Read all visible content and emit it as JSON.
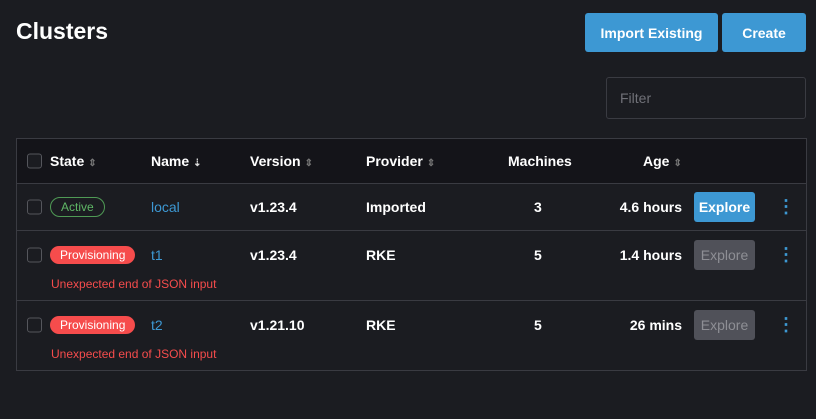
{
  "header": {
    "title": "Clusters",
    "import_label": "Import Existing",
    "create_label": "Create"
  },
  "filter": {
    "placeholder": "Filter",
    "value": ""
  },
  "table": {
    "columns": [
      "State",
      "Name",
      "Version",
      "Provider",
      "Machines",
      "Age"
    ],
    "rows": [
      {
        "state": "Active",
        "name": "local",
        "version": "v1.23.4",
        "provider": "Imported",
        "machines": "3",
        "age": "4.6 hours",
        "action": "Explore",
        "enabled": true,
        "error": ""
      },
      {
        "state": "Provisioning",
        "name": "t1",
        "version": "v1.23.4",
        "provider": "RKE",
        "machines": "5",
        "age": "1.4 hours",
        "action": "Explore",
        "enabled": false,
        "error": "Unexpected end of JSON input"
      },
      {
        "state": "Provisioning",
        "name": "t2",
        "version": "v1.21.10",
        "provider": "RKE",
        "machines": "5",
        "age": "26 mins",
        "action": "Explore",
        "enabled": false,
        "error": "Unexpected end of JSON input"
      }
    ]
  },
  "colors": {
    "accent": "#3d98d3",
    "error": "#f64c4c",
    "active": "#5fb866"
  }
}
